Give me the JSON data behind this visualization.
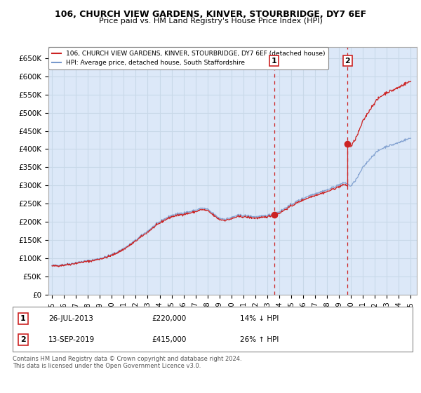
{
  "title1": "106, CHURCH VIEW GARDENS, KINVER, STOURBRIDGE, DY7 6EF",
  "title2": "Price paid vs. HM Land Registry's House Price Index (HPI)",
  "ylabel_ticks": [
    "£0",
    "£50K",
    "£100K",
    "£150K",
    "£200K",
    "£250K",
    "£300K",
    "£350K",
    "£400K",
    "£450K",
    "£500K",
    "£550K",
    "£600K",
    "£650K"
  ],
  "ytick_vals": [
    0,
    50000,
    100000,
    150000,
    200000,
    250000,
    300000,
    350000,
    400000,
    450000,
    500000,
    550000,
    600000,
    650000
  ],
  "xlim_start": 1994.7,
  "xlim_end": 2025.5,
  "ylim_min": 0,
  "ylim_max": 680000,
  "sale1_date": 2013.57,
  "sale1_price": 220000,
  "sale1_label": "1",
  "sale2_date": 2019.71,
  "sale2_price": 415000,
  "sale2_label": "2",
  "hpi_color": "#7799cc",
  "price_color": "#cc2222",
  "dashed_color": "#cc2222",
  "legend_label1": "106, CHURCH VIEW GARDENS, KINVER, STOURBRIDGE, DY7 6EF (detached house)",
  "legend_label2": "HPI: Average price, detached house, South Staffordshire",
  "annot1_date": "26-JUL-2013",
  "annot1_price": "£220,000",
  "annot1_rel": "14% ↓ HPI",
  "annot2_date": "13-SEP-2019",
  "annot2_price": "£415,000",
  "annot2_rel": "26% ↑ HPI",
  "footnote": "Contains HM Land Registry data © Crown copyright and database right 2024.\nThis data is licensed under the Open Government Licence v3.0.",
  "bg_color": "#ffffff",
  "plot_bg_color": "#dce8f8",
  "grid_color": "#c8d8e8"
}
